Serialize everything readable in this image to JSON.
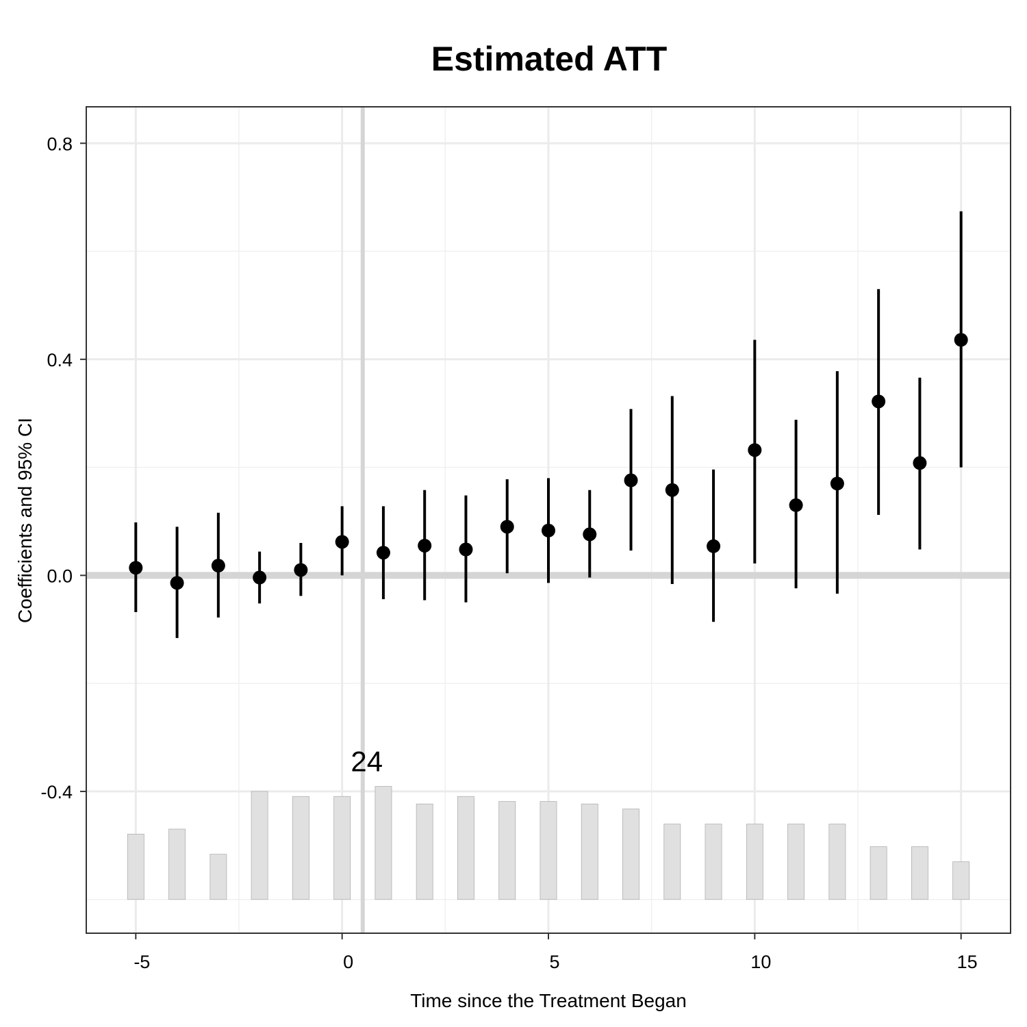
{
  "chart_data": {
    "type": "scatter",
    "title": "Estimated ATT",
    "xlabel": "Time since the Treatment Began",
    "ylabel": "Coefficients and 95% CI",
    "xlim": [
      -6.2,
      16.2
    ],
    "ylim": [
      -0.6625,
      0.8675
    ],
    "x_ticks": [
      -5,
      0,
      5,
      10,
      15
    ],
    "x_tick_labels": [
      "-5",
      "0",
      "5",
      "10",
      "15"
    ],
    "y_ticks": [
      0.8,
      0.4,
      0.0,
      -0.4
    ],
    "y_tick_labels": [
      "0.8",
      "0.4",
      "0.0",
      "-0.4"
    ],
    "grid": true,
    "reference_lines": {
      "y": 0.0,
      "x": 0.5
    },
    "colors": {
      "points": "#000000",
      "bars": "#e0e0e0",
      "bar_edge": "#b0b0b0",
      "reference": "#d5d5d5"
    },
    "series": [
      {
        "x": [
          -5,
          -4,
          -3,
          -2,
          -1,
          0,
          1,
          2,
          3,
          4,
          5,
          6,
          7,
          8,
          9,
          10,
          11,
          12,
          13,
          14,
          15
        ],
        "y": [
          0.014,
          -0.014,
          0.018,
          -0.004,
          0.01,
          0.062,
          0.042,
          0.055,
          0.048,
          0.09,
          0.083,
          0.076,
          0.176,
          0.158,
          0.054,
          0.232,
          0.13,
          0.17,
          0.322,
          0.208,
          0.436
        ],
        "ci_low": [
          -0.068,
          -0.116,
          -0.078,
          -0.052,
          -0.038,
          0.0,
          -0.044,
          -0.046,
          -0.05,
          0.004,
          -0.014,
          -0.004,
          0.046,
          -0.016,
          -0.086,
          0.022,
          -0.024,
          -0.034,
          0.112,
          0.048,
          0.2
        ],
        "ci_high": [
          0.098,
          0.09,
          0.116,
          0.044,
          0.06,
          0.128,
          0.128,
          0.158,
          0.148,
          0.178,
          0.18,
          0.158,
          0.308,
          0.332,
          0.196,
          0.436,
          0.288,
          0.378,
          0.53,
          0.366,
          0.674
        ]
      }
    ],
    "histogram": {
      "x": [
        -5,
        -4,
        -3,
        -2,
        -1,
        0,
        1,
        2,
        3,
        4,
        5,
        6,
        7,
        8,
        9,
        10,
        11,
        12,
        13,
        14,
        15
      ],
      "counts": [
        13,
        14,
        9,
        21.5,
        20.5,
        20.5,
        22.5,
        19,
        20.5,
        19.5,
        19.5,
        19,
        18,
        15,
        15,
        15,
        15,
        15,
        10.5,
        10.5,
        7.5
      ],
      "max_label": "24",
      "max_label_x": 0.5,
      "baseline_y": -0.6,
      "bar_width": 0.4
    }
  }
}
